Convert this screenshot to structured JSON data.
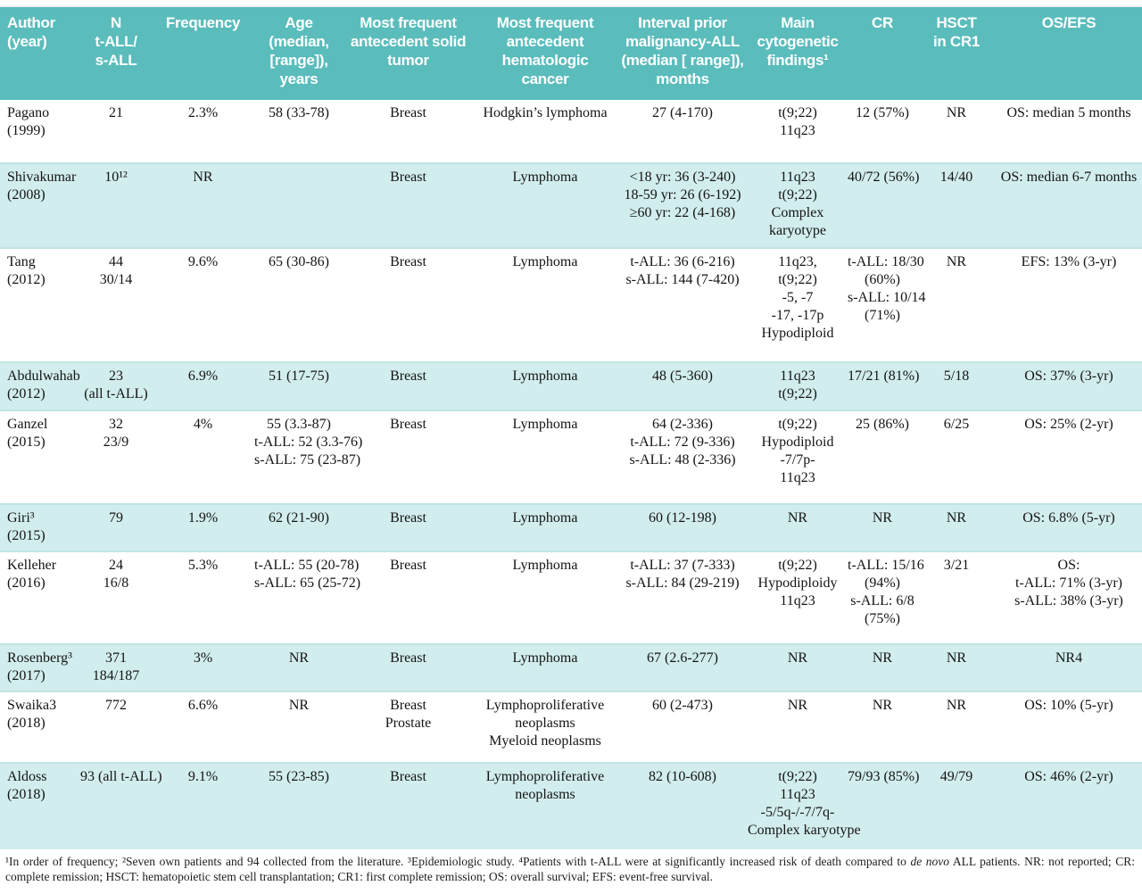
{
  "colors": {
    "header_bg": "#5bbcbc",
    "stripe_bg": "#d2eded",
    "row_rule": "#bfe5e4"
  },
  "table": {
    "columns": [
      {
        "label": "Author\n(year)"
      },
      {
        "label": "N\nt-ALL/\ns-ALL"
      },
      {
        "label": "Frequency"
      },
      {
        "label": "Age\n(median,\n[range]),\nyears"
      },
      {
        "label": "Most frequent\nantecedent solid\ntumor"
      },
      {
        "label": "Most frequent\nantecedent\nhematologic\ncancer"
      },
      {
        "label": "Interval prior\nmalignancy-ALL\n(median [ range]),\nmonths"
      },
      {
        "label": "Main\ncytogenetic\nfindings¹"
      },
      {
        "label": "CR"
      },
      {
        "label": "HSCT\nin CR1"
      },
      {
        "label": "OS/EFS"
      }
    ],
    "rows": [
      {
        "shaded": false,
        "cells": [
          "Pagano\n(1999)",
          "21",
          "2.3%",
          "58 (33-78)",
          "Breast",
          "Hodgkin’s lymphoma",
          "27 (4-170)",
          "t(9;22)\n11q23",
          "12 (57%)",
          "NR",
          "OS: median 5 months"
        ]
      },
      {
        "shaded": true,
        "cells": [
          "Shivakumar\n(2008)",
          "10¹²",
          "NR",
          "",
          "Breast",
          "Lymphoma",
          "<18 yr: 36 (3-240)\n18-59 yr: 26 (6-192)\n≥60 yr: 22 (4-168)",
          "11q23\nt(9;22)\nComplex\nkaryotype",
          "40/72 (56%)",
          "14/40",
          "OS: median 6-7 months"
        ]
      },
      {
        "shaded": false,
        "cells": [
          "Tang\n(2012)",
          "44\n30/14",
          "9.6%",
          "65 (30-86)",
          "Breast",
          "Lymphoma",
          "t-ALL: 36 (6-216)\ns-ALL: 144 (7-420)",
          "11q23,\nt(9;22)\n-5, -7\n-17, -17p\nHypodiploid",
          "t-ALL: 18/30\n(60%)\ns-ALL: 10/14\n(71%)",
          "NR",
          "EFS: 13% (3-yr)"
        ]
      },
      {
        "shaded": true,
        "cells": [
          "Abdulwahab\n(2012)",
          "23\n(all t-ALL)",
          "6.9%",
          "51 (17-75)",
          "Breast",
          "Lymphoma",
          "48 (5-360)",
          "11q23\nt(9;22)",
          "17/21 (81%)",
          "5/18",
          "OS: 37% (3-yr)"
        ]
      },
      {
        "shaded": false,
        "cells": [
          "Ganzel\n(2015)",
          "32\n23/9",
          "4%",
          "55 (3.3-87)\nt-ALL: 52 (3.3-76)\ns-ALL: 75 (23-87)",
          "Breast",
          "Lymphoma",
          "64 (2-336)\nt-ALL: 72 (9-336)\ns-ALL: 48 (2-336)",
          "t(9;22)\nHypodiploid\n-7/7p-\n11q23",
          "25 (86%)",
          "6/25",
          "OS: 25% (2-yr)"
        ]
      },
      {
        "shaded": true,
        "cells": [
          "Giri³\n(2015)",
          "79",
          "1.9%",
          "62 (21-90)",
          "Breast",
          "Lymphoma",
          "60 (12-198)",
          "NR",
          "NR",
          "NR",
          "OS: 6.8% (5-yr)"
        ]
      },
      {
        "shaded": false,
        "cells": [
          "Kelleher\n(2016)",
          "24\n16/8",
          "5.3%",
          "t-ALL: 55 (20-78)\ns-ALL: 65 (25-72)",
          "Breast",
          "Lymphoma",
          "t-ALL: 37 (7-333)\ns-ALL: 84 (29-219)",
          "t(9;22)\nHypodiploidy\n11q23",
          "t-ALL: 15/16\n(94%)\ns-ALL: 6/8\n(75%)",
          "3/21",
          "OS:\nt-ALL: 71% (3-yr)\ns-ALL: 38% (3-yr)"
        ]
      },
      {
        "shaded": true,
        "cells": [
          "Rosenberg³\n(2017)",
          "371\n184/187",
          "3%",
          "NR",
          "Breast",
          "Lymphoma",
          "67 (2.6-277)",
          "NR",
          "NR",
          "NR",
          "NR4"
        ]
      },
      {
        "shaded": false,
        "cells": [
          "Swaika3\n(2018)",
          "772",
          "6.6%",
          "NR",
          "Breast\nProstate",
          "Lymphoproliferative\nneoplasms\nMyeloid neoplasms",
          "60 (2-473)",
          "NR",
          "NR",
          "NR",
          "OS: 10% (5-yr)"
        ]
      },
      {
        "shaded": true,
        "cells": [
          "Aldoss\n(2018)",
          "93 (all t-ALL)",
          "9.1%",
          "55 (23-85)",
          "Breast",
          "Lymphoproliferative\nneoplasms",
          "82 (10-608)",
          "t(9;22)\n11q23\n-5/5q-/-7/7q-\nComplex karyotype",
          "79/93 (85%)",
          "49/79",
          "OS: 46% (2-yr)"
        ]
      }
    ]
  },
  "footnote": {
    "part1": "¹In order of frequency; ²Seven own patients and 94 collected from the literature. ³Epidemiologic study. ⁴Patients with t-ALL were at significantly increased risk of death compared to ",
    "italic": "de novo",
    "part2": " ALL patients. NR: not reported; CR: complete remission; HSCT: hematopoietic stem cell transplantation; CR1: first complete remission; OS: overall survival; EFS: event-free survival."
  }
}
